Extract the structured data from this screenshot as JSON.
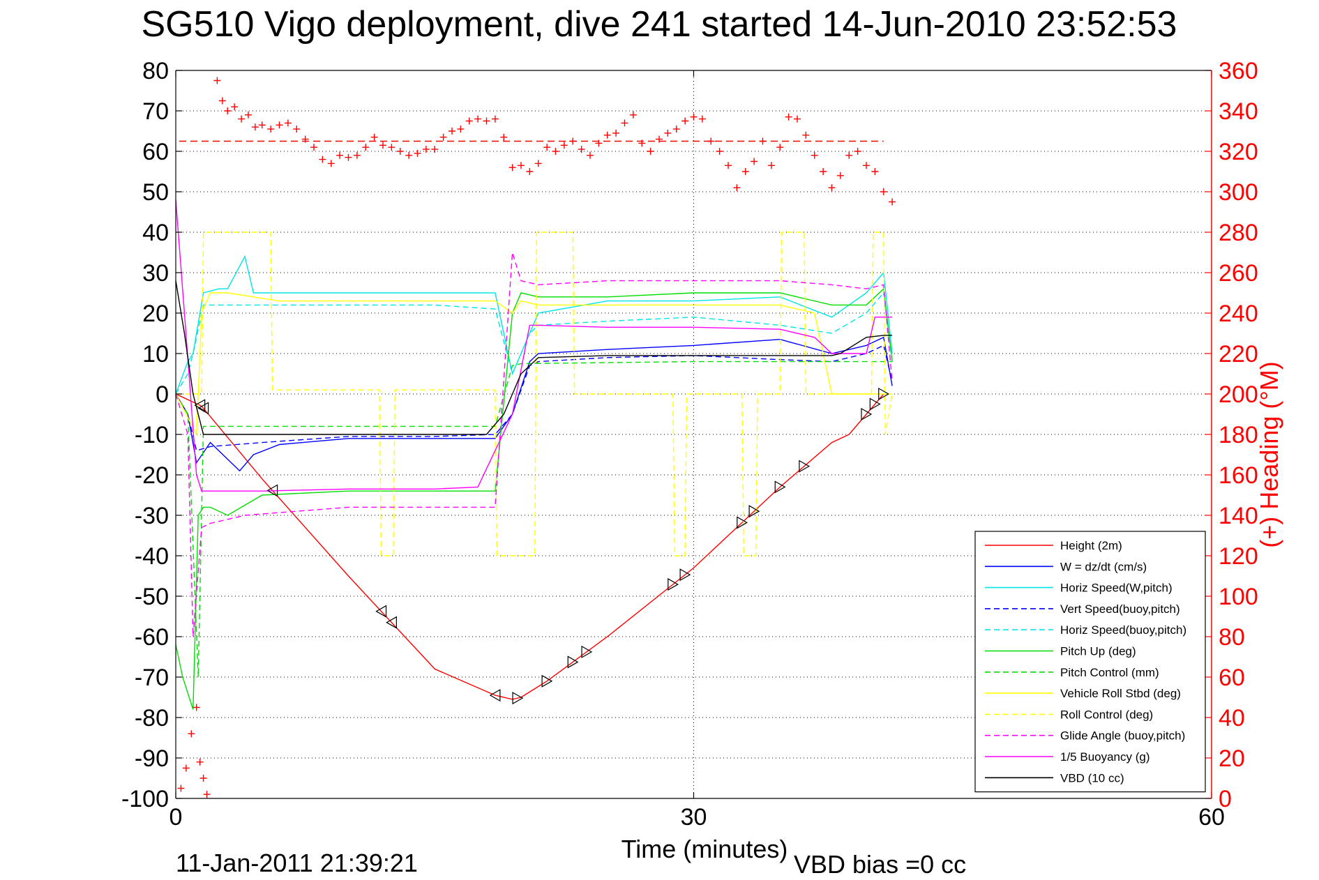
{
  "chart_data": {
    "type": "line",
    "title": "SG510 Vigo deployment, dive 241 started 14-Jun-2010 23:52:53",
    "xlabel": "Time (minutes)",
    "y2label": "(+) Heading (°M)",
    "xlim": [
      0,
      60
    ],
    "ylim": [
      -100,
      80
    ],
    "y2lim": [
      0,
      360
    ],
    "xticks": [
      "0",
      "30",
      "60"
    ],
    "yticks": [
      "80",
      "70",
      "60",
      "50",
      "40",
      "30",
      "20",
      "10",
      "0",
      "-10",
      "-20",
      "-30",
      "-40",
      "-50",
      "-60",
      "-70",
      "-80",
      "-90",
      "-100"
    ],
    "y2ticks": [
      "360",
      "340",
      "320",
      "300",
      "280",
      "260",
      "240",
      "220",
      "200",
      "180",
      "160",
      "140",
      "120",
      "100",
      "80",
      "60",
      "40",
      "20",
      "0"
    ],
    "grid": true,
    "legend_position": "bottom-right",
    "footer_left": "11-Jan-2011 21:39:21",
    "footer_right": "VBD bias =0 cc",
    "heading_mean": 325,
    "series": [
      {
        "name": "Height (2m)",
        "color": "#ff0000",
        "dash": "solid",
        "x": [
          0,
          1.5,
          5,
          10,
          15,
          18.5,
          19.5,
          20,
          21.5,
          25,
          30,
          35,
          38,
          39,
          41
        ],
        "y": [
          0,
          -3,
          -21,
          -45,
          -68,
          -74.5,
          -75.5,
          -75,
          -71,
          -60,
          -43,
          -23,
          -12,
          -10,
          0
        ]
      },
      {
        "name": "W = dz/dt (cm/s)",
        "color": "#0000ff",
        "dash": "solid",
        "x": [
          0,
          0.7,
          1.2,
          2,
          3.7,
          4.5,
          6,
          10,
          15,
          18.5,
          19.5,
          20.5,
          21,
          25,
          30,
          35,
          38,
          40,
          41,
          41.5
        ],
        "y": [
          0,
          -5,
          -17,
          -12,
          -19,
          -15,
          -12.5,
          -11,
          -11,
          -11,
          -5,
          8,
          10,
          11,
          12,
          13.5,
          10,
          12,
          14,
          2
        ]
      },
      {
        "name": "Horiz Speed(W,pitch)",
        "color": "#00e5e5",
        "dash": "solid",
        "x": [
          0,
          0.7,
          1,
          1.6,
          2.5,
          3,
          4,
          4.5,
          6,
          10,
          15,
          18.5,
          19.5,
          20,
          21,
          25,
          30,
          35,
          38,
          40,
          41,
          41.5
        ],
        "y": [
          0,
          8,
          10,
          25,
          26,
          26,
          34,
          25,
          25,
          25,
          25,
          25,
          5,
          10,
          20,
          23,
          23,
          24,
          19,
          25,
          30,
          10
        ]
      },
      {
        "name": "Vert Speed(buoy,pitch)",
        "color": "#0000ff",
        "dash": "dashed",
        "x": [
          0,
          0.7,
          1.2,
          2,
          5,
          10,
          15,
          18.5,
          19.5,
          20.5,
          21,
          25,
          30,
          35,
          38,
          40,
          41,
          41.5
        ],
        "y": [
          0,
          -5,
          -14,
          -13,
          -12,
          -10.5,
          -10.5,
          -10,
          -5,
          7,
          8,
          9,
          9.5,
          8.5,
          8,
          10,
          12,
          3
        ]
      },
      {
        "name": "Horiz Speed(buoy,pitch)",
        "color": "#00e5e5",
        "dash": "dashed",
        "x": [
          0,
          0.7,
          1,
          1.6,
          5,
          10,
          15,
          18.5,
          19.5,
          20.5,
          21,
          25,
          30,
          35,
          38,
          40,
          41,
          41.5
        ],
        "y": [
          0,
          5,
          10,
          22,
          22,
          22,
          22,
          21,
          5,
          15,
          17,
          18,
          19,
          17,
          15,
          20,
          25,
          8
        ]
      },
      {
        "name": "Pitch Up (deg)",
        "color": "#00dd00",
        "dash": "solid",
        "x": [
          0,
          0.4,
          0.7,
          1,
          1.3,
          1.6,
          2,
          3,
          5,
          10,
          15,
          18.5,
          19.5,
          20,
          21,
          25,
          30,
          35,
          38,
          40,
          41,
          41.5
        ],
        "y": [
          -62,
          -70,
          -74,
          -78,
          -30,
          -28,
          -28,
          -30,
          -25,
          -24,
          -24,
          -24,
          20,
          25,
          24,
          24,
          25,
          25,
          22,
          22,
          26,
          8
        ]
      },
      {
        "name": "Pitch Control (mm)",
        "color": "#00dd00",
        "dash": "dashed",
        "x": [
          0,
          0.7,
          1.3,
          1.6,
          2,
          10,
          18.5,
          19.5,
          20,
          30,
          40,
          41,
          41.5
        ],
        "y": [
          0,
          -5,
          -70,
          -8,
          -8,
          -8,
          -8,
          7,
          7.5,
          8,
          8,
          8,
          8
        ]
      },
      {
        "name": "Vehicle Roll Stbd (deg)",
        "color": "#ffff00",
        "dash": "solid",
        "x": [
          0,
          1.2,
          1.5,
          2,
          3,
          6,
          10,
          15,
          18.5,
          19.5,
          20,
          21,
          25,
          30,
          35,
          37,
          38,
          40,
          41,
          41.5
        ],
        "y": [
          0,
          -10,
          20,
          25,
          25,
          23,
          23,
          23,
          23,
          20,
          23,
          22,
          22,
          22,
          22,
          20,
          0,
          0,
          0,
          0
        ]
      },
      {
        "name": "Roll Control (deg)",
        "color": "#ffff00",
        "dash": "dashed",
        "x": [
          0,
          1.5,
          1.6,
          5.5,
          5.6,
          11.8,
          11.9,
          12.6,
          12.7,
          18.5,
          18.6,
          20.8,
          20.9,
          23,
          23.1,
          23.8,
          23.9,
          28.8,
          28.9,
          29.5,
          29.6,
          32.8,
          32.9,
          33.6,
          33.7,
          35,
          35.1,
          36.4,
          36.5,
          40.3,
          40.4,
          41,
          41.1,
          41.5
        ],
        "y": [
          0,
          0,
          40,
          40,
          1,
          1,
          -40,
          -40,
          1,
          1,
          -40,
          -40,
          40,
          40,
          0,
          0,
          0,
          0,
          -40,
          -40,
          0,
          0,
          -40,
          -40,
          0,
          0,
          40,
          40,
          0,
          0,
          40,
          40,
          -10,
          0
        ]
      },
      {
        "name": "Glide Angle (buoy,pitch)",
        "color": "#ff00ff",
        "dash": "dashed",
        "x": [
          0,
          0.7,
          1,
          1.5,
          2,
          4,
          10,
          15,
          18.5,
          19.5,
          20,
          21,
          25,
          30,
          35,
          38,
          40,
          41,
          41.5
        ],
        "y": [
          0,
          -10,
          -60,
          -33,
          -32,
          -30,
          -28,
          -28,
          -28,
          35,
          28,
          27,
          28,
          28,
          28,
          27,
          26,
          27,
          3
        ]
      },
      {
        "name": "1/5 Buoyancy (g)",
        "color": "#ff00ff",
        "dash": "solid",
        "x": [
          0,
          0.5,
          1.2,
          1.5,
          5,
          10,
          15,
          17.5,
          19.5,
          20.5,
          21,
          25,
          30,
          35,
          37,
          38,
          40,
          40.5,
          41.5
        ],
        "y": [
          48,
          20,
          -20,
          -24,
          -24,
          -23.5,
          -23.5,
          -23,
          -5,
          17,
          17,
          16.5,
          16.5,
          16,
          14,
          10,
          10,
          19,
          19
        ]
      },
      {
        "name": "VBD (10 cc)",
        "color": "#000000",
        "dash": "solid",
        "x": [
          0,
          0.5,
          1,
          1.6,
          2,
          10,
          18,
          19,
          20,
          21,
          25,
          30,
          35,
          38,
          38.5,
          40,
          41,
          41.5
        ],
        "y": [
          28,
          15,
          0,
          -10,
          -10,
          -10,
          -10,
          -5,
          5,
          9,
          9.5,
          9.5,
          9.5,
          9.5,
          10,
          14,
          14.5,
          14.5
        ]
      }
    ],
    "heading": {
      "name": "Heading",
      "color": "#ff0000",
      "marker": "+",
      "axis": "right",
      "x": [
        0.3,
        0.6,
        0.9,
        1.2,
        1.4,
        1.6,
        1.8,
        2.4,
        2.7,
        3.0,
        3.4,
        3.8,
        4.2,
        4.6,
        5.0,
        5.5,
        6.0,
        6.5,
        7.0,
        7.5,
        8.0,
        8.5,
        9.0,
        9.5,
        10.0,
        10.5,
        11.0,
        11.5,
        12.0,
        12.5,
        13.0,
        13.5,
        14.0,
        14.5,
        15.0,
        15.5,
        16.0,
        16.5,
        17.0,
        17.5,
        18.0,
        18.5,
        19.0,
        19.5,
        20.0,
        20.5,
        21.0,
        21.5,
        22.0,
        22.5,
        23.0,
        23.5,
        24.0,
        24.5,
        25.0,
        25.5,
        26.0,
        26.5,
        27.0,
        27.5,
        28.0,
        28.5,
        29.0,
        29.5,
        30.0,
        30.5,
        31.0,
        31.5,
        32.0,
        32.5,
        33.0,
        33.5,
        34.0,
        34.5,
        35.0,
        35.5,
        36.0,
        36.5,
        37.0,
        37.5,
        38.0,
        38.5,
        39.0,
        39.5,
        40.0,
        40.5,
        41.0,
        41.5
      ],
      "y": [
        5,
        15,
        32,
        45,
        18,
        10,
        2,
        355,
        345,
        340,
        342,
        336,
        338,
        332,
        333,
        331,
        333,
        334,
        331,
        326,
        322,
        316,
        314,
        318,
        317,
        318,
        322,
        327,
        323,
        322,
        320,
        318,
        319,
        321,
        321,
        327,
        330,
        331,
        335,
        336,
        335,
        336,
        327,
        312,
        313,
        310,
        314,
        322,
        320,
        323,
        325,
        321,
        318,
        324,
        328,
        329,
        334,
        338,
        324,
        320,
        326,
        329,
        331,
        335,
        337,
        336,
        325,
        320,
        313,
        302,
        310,
        315,
        325,
        313,
        322,
        337,
        336,
        328,
        318,
        310,
        302,
        308,
        318,
        320,
        313,
        310,
        300,
        295
      ]
    }
  }
}
